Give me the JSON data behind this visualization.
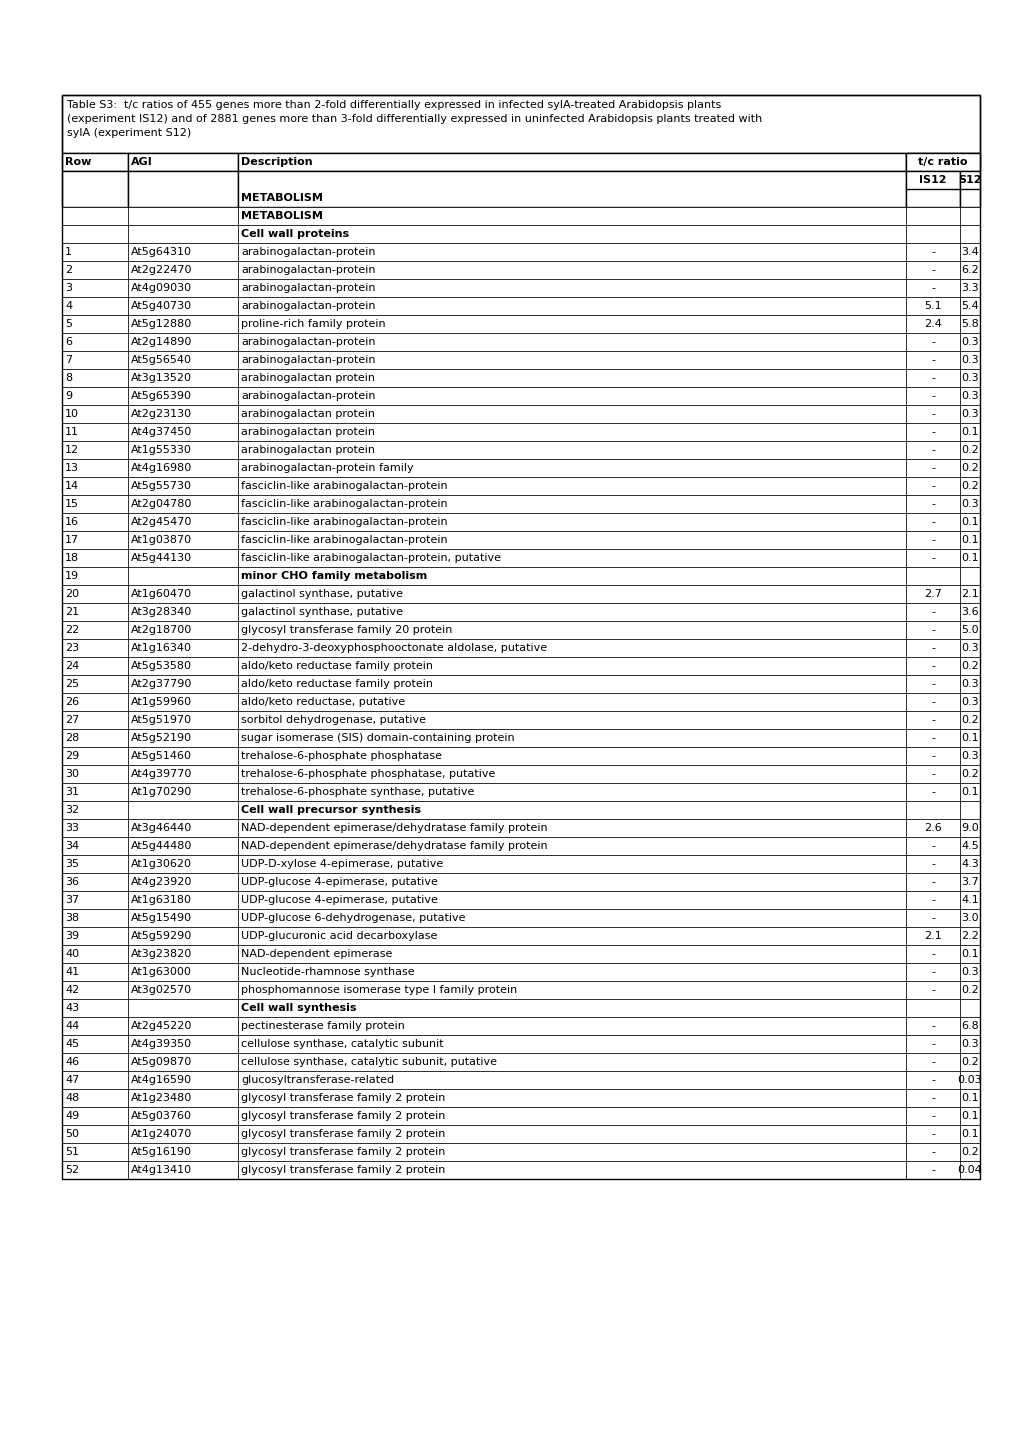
{
  "caption_line1": "Table S3:  t/c ratios of 455 genes more than 2-fold differentially expressed in infected sylA-treated Arabidopsis plants",
  "caption_line2": "(experiment IS12) and of 2881 genes more than 3-fold differentially expressed in uninfected Arabidopsis plants treated with",
  "caption_line3": "sylA (experiment S12)",
  "rows": [
    {
      "row": "",
      "agi": "",
      "desc": "METABOLISM",
      "is12": "",
      "s12": "",
      "bold": true
    },
    {
      "row": "",
      "agi": "",
      "desc": "Cell wall proteins",
      "is12": "",
      "s12": "",
      "bold": true
    },
    {
      "row": "1",
      "agi": "At5g64310",
      "desc": "arabinogalactan-protein",
      "is12": "-",
      "s12": "3.4",
      "bold": false
    },
    {
      "row": "2",
      "agi": "At2g22470",
      "desc": "arabinogalactan-protein",
      "is12": "-",
      "s12": "6.2",
      "bold": false
    },
    {
      "row": "3",
      "agi": "At4g09030",
      "desc": "arabinogalactan-protein",
      "is12": "-",
      "s12": "3.3",
      "bold": false
    },
    {
      "row": "4",
      "agi": "At5g40730",
      "desc": "arabinogalactan-protein",
      "is12": "5.1",
      "s12": "5.4",
      "bold": false
    },
    {
      "row": "5",
      "agi": "At5g12880",
      "desc": "proline-rich family protein",
      "is12": "2.4",
      "s12": "5.8",
      "bold": false
    },
    {
      "row": "6",
      "agi": "At2g14890",
      "desc": "arabinogalactan-protein",
      "is12": "-",
      "s12": "0.3",
      "bold": false
    },
    {
      "row": "7",
      "agi": "At5g56540",
      "desc": "arabinogalactan-protein",
      "is12": "-",
      "s12": "0.3",
      "bold": false
    },
    {
      "row": "8",
      "agi": "At3g13520",
      "desc": "arabinogalactan protein",
      "is12": "-",
      "s12": "0.3",
      "bold": false
    },
    {
      "row": "9",
      "agi": "At5g65390",
      "desc": "arabinogalactan-protein",
      "is12": "-",
      "s12": "0.3",
      "bold": false
    },
    {
      "row": "10",
      "agi": "At2g23130",
      "desc": "arabinogalactan protein",
      "is12": "-",
      "s12": "0.3",
      "bold": false
    },
    {
      "row": "11",
      "agi": "At4g37450",
      "desc": "arabinogalactan protein",
      "is12": "-",
      "s12": "0.1",
      "bold": false
    },
    {
      "row": "12",
      "agi": "At1g55330",
      "desc": "arabinogalactan protein",
      "is12": "-",
      "s12": "0.2",
      "bold": false
    },
    {
      "row": "13",
      "agi": "At4g16980",
      "desc": "arabinogalactan-protein family",
      "is12": "-",
      "s12": "0.2",
      "bold": false
    },
    {
      "row": "14",
      "agi": "At5g55730",
      "desc": "fasciclin-like arabinogalactan-protein",
      "is12": "-",
      "s12": "0.2",
      "bold": false
    },
    {
      "row": "15",
      "agi": "At2g04780",
      "desc": "fasciclin-like arabinogalactan-protein",
      "is12": "-",
      "s12": "0.3",
      "bold": false
    },
    {
      "row": "16",
      "agi": "At2g45470",
      "desc": "fasciclin-like arabinogalactan-protein",
      "is12": "-",
      "s12": "0.1",
      "bold": false
    },
    {
      "row": "17",
      "agi": "At1g03870",
      "desc": "fasciclin-like arabinogalactan-protein",
      "is12": "-",
      "s12": "0.1",
      "bold": false
    },
    {
      "row": "18",
      "agi": "At5g44130",
      "desc": "fasciclin-like arabinogalactan-protein, putative",
      "is12": "-",
      "s12": "0.1",
      "bold": false
    },
    {
      "row": "19",
      "agi": "",
      "desc": "minor CHO family metabolism",
      "is12": "",
      "s12": "",
      "bold": true
    },
    {
      "row": "20",
      "agi": "At1g60470",
      "desc": "galactinol synthase, putative",
      "is12": "2.7",
      "s12": "2.1",
      "bold": false
    },
    {
      "row": "21",
      "agi": "At3g28340",
      "desc": "galactinol synthase, putative",
      "is12": "-",
      "s12": "3.6",
      "bold": false
    },
    {
      "row": "22",
      "agi": "At2g18700",
      "desc": "glycosyl transferase family 20 protein",
      "is12": "-",
      "s12": "5.0",
      "bold": false
    },
    {
      "row": "23",
      "agi": "At1g16340",
      "desc": "2-dehydro-3-deoxyphosphooctonate aldolase, putative",
      "is12": "-",
      "s12": "0.3",
      "bold": false
    },
    {
      "row": "24",
      "agi": "At5g53580",
      "desc": "aldo/keto reductase family protein",
      "is12": "-",
      "s12": "0.2",
      "bold": false
    },
    {
      "row": "25",
      "agi": "At2g37790",
      "desc": "aldo/keto reductase family protein",
      "is12": "-",
      "s12": "0.3",
      "bold": false
    },
    {
      "row": "26",
      "agi": "At1g59960",
      "desc": "aldo/keto reductase, putative",
      "is12": "-",
      "s12": "0.3",
      "bold": false
    },
    {
      "row": "27",
      "agi": "At5g51970",
      "desc": "sorbitol dehydrogenase, putative",
      "is12": "-",
      "s12": "0.2",
      "bold": false
    },
    {
      "row": "28",
      "agi": "At5g52190",
      "desc": "sugar isomerase (SIS) domain-containing protein",
      "is12": "-",
      "s12": "0.1",
      "bold": false
    },
    {
      "row": "29",
      "agi": "At5g51460",
      "desc": "trehalose-6-phosphate phosphatase",
      "is12": "-",
      "s12": "0.3",
      "bold": false
    },
    {
      "row": "30",
      "agi": "At4g39770",
      "desc": "trehalose-6-phosphate phosphatase, putative",
      "is12": "-",
      "s12": "0.2",
      "bold": false
    },
    {
      "row": "31",
      "agi": "At1g70290",
      "desc": "trehalose-6-phosphate synthase, putative",
      "is12": "-",
      "s12": "0.1",
      "bold": false
    },
    {
      "row": "32",
      "agi": "",
      "desc": "Cell wall precursor synthesis",
      "is12": "",
      "s12": "",
      "bold": true
    },
    {
      "row": "33",
      "agi": "At3g46440",
      "desc": "NAD-dependent epimerase/dehydratase family protein",
      "is12": "2.6",
      "s12": "9.0",
      "bold": false
    },
    {
      "row": "34",
      "agi": "At5g44480",
      "desc": "NAD-dependent epimerase/dehydratase family protein",
      "is12": "-",
      "s12": "4.5",
      "bold": false
    },
    {
      "row": "35",
      "agi": "At1g30620",
      "desc": "UDP-D-xylose 4-epimerase, putative",
      "is12": "-",
      "s12": "4.3",
      "bold": false
    },
    {
      "row": "36",
      "agi": "At4g23920",
      "desc": "UDP-glucose 4-epimerase, putative",
      "is12": "-",
      "s12": "3.7",
      "bold": false
    },
    {
      "row": "37",
      "agi": "At1g63180",
      "desc": "UDP-glucose 4-epimerase, putative",
      "is12": "-",
      "s12": "4.1",
      "bold": false
    },
    {
      "row": "38",
      "agi": "At5g15490",
      "desc": "UDP-glucose 6-dehydrogenase, putative",
      "is12": "-",
      "s12": "3.0",
      "bold": false
    },
    {
      "row": "39",
      "agi": "At5g59290",
      "desc": "UDP-glucuronic acid decarboxylase",
      "is12": "2.1",
      "s12": "2.2",
      "bold": false
    },
    {
      "row": "40",
      "agi": "At3g23820",
      "desc": "NAD-dependent epimerase",
      "is12": "-",
      "s12": "0.1",
      "bold": false
    },
    {
      "row": "41",
      "agi": "At1g63000",
      "desc": "Nucleotide-rhamnose synthase",
      "is12": "-",
      "s12": "0.3",
      "bold": false
    },
    {
      "row": "42",
      "agi": "At3g02570",
      "desc": "phosphomannose isomerase type I family protein",
      "is12": "-",
      "s12": "0.2",
      "bold": false
    },
    {
      "row": "43",
      "agi": "",
      "desc": "Cell wall synthesis",
      "is12": "",
      "s12": "",
      "bold": true
    },
    {
      "row": "44",
      "agi": "At2g45220",
      "desc": "pectinesterase family protein",
      "is12": "-",
      "s12": "6.8",
      "bold": false
    },
    {
      "row": "45",
      "agi": "At4g39350",
      "desc": "cellulose synthase, catalytic subunit",
      "is12": "-",
      "s12": "0.3",
      "bold": false
    },
    {
      "row": "46",
      "agi": "At5g09870",
      "desc": "cellulose synthase, catalytic subunit, putative",
      "is12": "-",
      "s12": "0.2",
      "bold": false
    },
    {
      "row": "47",
      "agi": "At4g16590",
      "desc": "glucosyltransferase-related",
      "is12": "-",
      "s12": "0.03",
      "bold": false
    },
    {
      "row": "48",
      "agi": "At1g23480",
      "desc": "glycosyl transferase family 2 protein",
      "is12": "-",
      "s12": "0.1",
      "bold": false
    },
    {
      "row": "49",
      "agi": "At5g03760",
      "desc": "glycosyl transferase family 2 protein",
      "is12": "-",
      "s12": "0.1",
      "bold": false
    },
    {
      "row": "50",
      "agi": "At1g24070",
      "desc": "glycosyl transferase family 2 protein",
      "is12": "-",
      "s12": "0.1",
      "bold": false
    },
    {
      "row": "51",
      "agi": "At5g16190",
      "desc": "glycosyl transferase family 2 protein",
      "is12": "-",
      "s12": "0.2",
      "bold": false
    },
    {
      "row": "52",
      "agi": "At4g13410",
      "desc": "glycosyl transferase family 2 protein",
      "is12": "-",
      "s12": "0.04",
      "bold": false
    }
  ],
  "font_size": 8.0,
  "bg_color": "#ffffff"
}
